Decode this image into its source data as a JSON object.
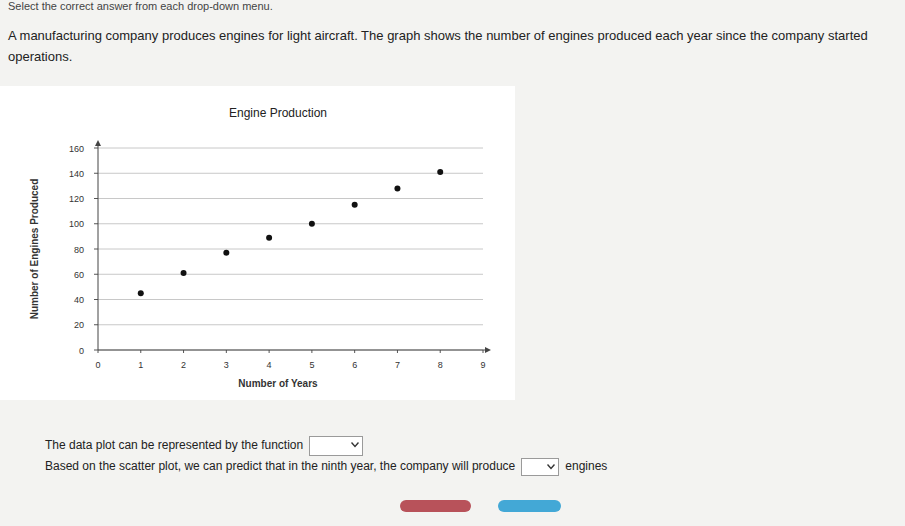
{
  "page": {
    "instruction": "Select the correct answer from each drop-down menu.",
    "question": "A manufacturing company produces engines for light aircraft. The graph shows the number of engines produced each year since the company started operations.",
    "prompt_1": "The data plot can be represented by the function",
    "prompt_2": "Based on the scatter plot, we can predict that in the ninth year, the company will produce",
    "prompt_2_end": "engines"
  },
  "chart_data": {
    "type": "scatter",
    "title": "Engine Production",
    "x_label": "Number of Years",
    "y_label": "Number of Engines Produced",
    "x": [
      1,
      2,
      3,
      4,
      5,
      6,
      7,
      8
    ],
    "values": [
      45,
      61,
      77,
      89,
      100,
      115,
      128,
      141
    ],
    "color": "#111111",
    "marker": "circle",
    "xlim": [
      0,
      9
    ],
    "ylim": [
      0,
      160
    ],
    "xticks": [
      0,
      1,
      2,
      3,
      4,
      5,
      6,
      7,
      8,
      9
    ],
    "yticks": [
      0,
      20,
      40,
      60,
      80,
      100,
      120,
      140,
      160
    ],
    "grid": true
  }
}
